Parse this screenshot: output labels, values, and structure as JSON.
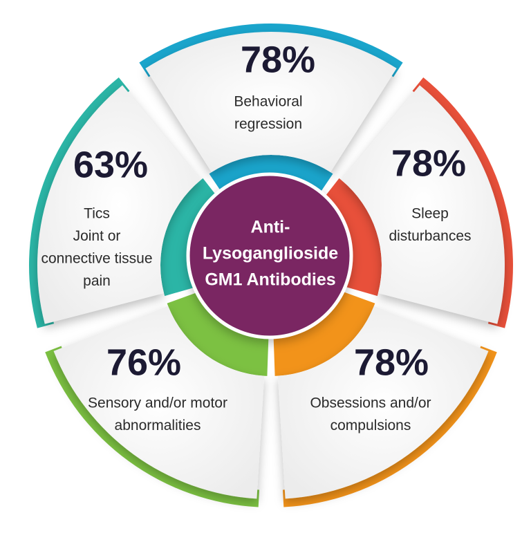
{
  "center": {
    "lines": [
      "Anti-",
      "Lysoganglioside",
      "GM1 Antibodies"
    ]
  },
  "segments": [
    {
      "percent": "78%",
      "lines": [
        "Behavioral",
        "regression"
      ]
    },
    {
      "percent": "78%",
      "lines": [
        "Sleep",
        "disturbances"
      ]
    },
    {
      "percent": "78%",
      "lines": [
        "Obsessions and/or",
        "compulsions"
      ]
    },
    {
      "percent": "76%",
      "lines": [
        "Sensory and/or motor",
        "abnormalities"
      ]
    },
    {
      "percent": "63%",
      "lines": [
        "Tics",
        "Joint or",
        "connective tissue",
        "pain"
      ]
    }
  ]
}
